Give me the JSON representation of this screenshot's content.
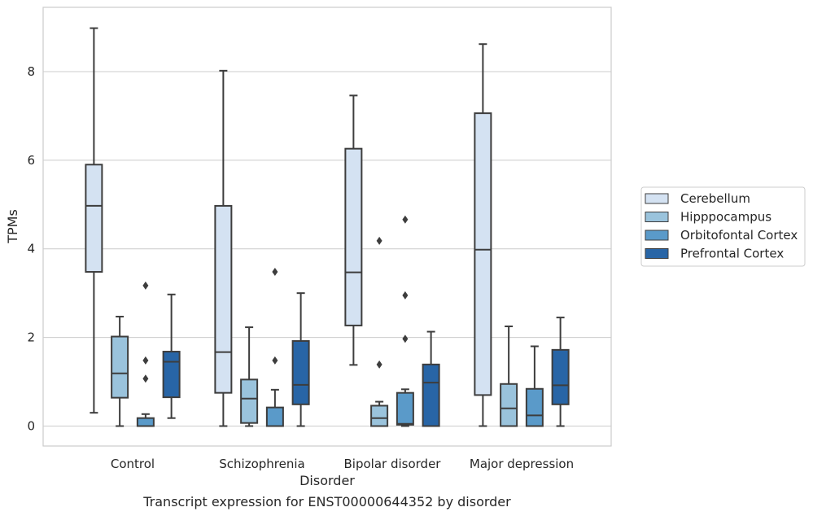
{
  "chart_data": {
    "type": "boxplot",
    "title": "Transcript expression for ENST00000644352 by disorder",
    "xlabel": "Disorder",
    "ylabel": "TPMs",
    "ylim": [
      -0.45,
      9.45
    ],
    "yticks": [
      0,
      2,
      4,
      6,
      8
    ],
    "grid": true,
    "legend_position": "right",
    "categories": [
      "Control",
      "Schizophrenia",
      "Bipolar disorder",
      "Major depression"
    ],
    "series": [
      {
        "name": "Cerebellum",
        "color": "#d4e2f2",
        "boxes": [
          {
            "whislo": 0.3,
            "q1": 3.48,
            "med": 4.97,
            "q3": 5.9,
            "whishi": 8.98,
            "fliers": []
          },
          {
            "whislo": 0.0,
            "q1": 0.75,
            "med": 1.67,
            "q3": 4.97,
            "whishi": 8.02,
            "fliers": []
          },
          {
            "whislo": 1.38,
            "q1": 2.27,
            "med": 3.47,
            "q3": 6.26,
            "whishi": 7.46,
            "fliers": []
          },
          {
            "whislo": 0.0,
            "q1": 0.7,
            "med": 3.98,
            "q3": 7.06,
            "whishi": 8.62,
            "fliers": []
          }
        ]
      },
      {
        "name": "Hipppocampus",
        "color": "#9ac3dc",
        "boxes": [
          {
            "whislo": 0.0,
            "q1": 0.64,
            "med": 1.19,
            "q3": 2.02,
            "whishi": 2.47,
            "fliers": []
          },
          {
            "whislo": 0.0,
            "q1": 0.07,
            "med": 0.62,
            "q3": 1.05,
            "whishi": 2.23,
            "fliers": []
          },
          {
            "whislo": 0.0,
            "q1": 0.0,
            "med": 0.18,
            "q3": 0.46,
            "whishi": 0.55,
            "fliers": [
              1.39,
              4.18
            ]
          },
          {
            "whislo": 0.0,
            "q1": 0.0,
            "med": 0.4,
            "q3": 0.95,
            "whishi": 2.25,
            "fliers": []
          }
        ]
      },
      {
        "name": "Orbitofontal Cortex",
        "color": "#5a9ac9",
        "boxes": [
          {
            "whislo": 0.0,
            "q1": 0.0,
            "med": 0.0,
            "q3": 0.18,
            "whishi": 0.27,
            "fliers": [
              1.07,
              1.48,
              3.17
            ]
          },
          {
            "whislo": 0.0,
            "q1": 0.0,
            "med": 0.0,
            "q3": 0.42,
            "whishi": 0.82,
            "fliers": [
              1.48,
              3.48
            ]
          },
          {
            "whislo": 0.0,
            "q1": 0.03,
            "med": 0.05,
            "q3": 0.75,
            "whishi": 0.83,
            "fliers": [
              1.97,
              2.95,
              4.66
            ]
          },
          {
            "whislo": 0.0,
            "q1": 0.0,
            "med": 0.24,
            "q3": 0.84,
            "whishi": 1.8,
            "fliers": []
          }
        ]
      },
      {
        "name": "Prefrontal Cortex",
        "color": "#2865a6",
        "boxes": [
          {
            "whislo": 0.18,
            "q1": 0.65,
            "med": 1.45,
            "q3": 1.68,
            "whishi": 2.97,
            "fliers": []
          },
          {
            "whislo": 0.0,
            "q1": 0.49,
            "med": 0.93,
            "q3": 1.92,
            "whishi": 3.0,
            "fliers": []
          },
          {
            "whislo": 0.0,
            "q1": 0.0,
            "med": 0.98,
            "q3": 1.39,
            "whishi": 2.13,
            "fliers": []
          },
          {
            "whislo": 0.0,
            "q1": 0.49,
            "med": 0.92,
            "q3": 1.72,
            "whishi": 2.45,
            "fliers": []
          }
        ]
      }
    ]
  }
}
